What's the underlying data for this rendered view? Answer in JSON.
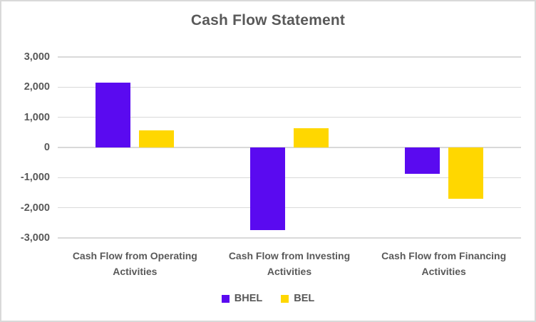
{
  "title": "Cash Flow Statement",
  "colors": {
    "bhel": "#5a0af0",
    "bel": "#ffd700",
    "text": "#595959",
    "gridline": "#d9d9d9",
    "border": "#d9d9d9",
    "background": "#ffffff"
  },
  "chart_data": {
    "type": "bar",
    "title": "Cash Flow Statement",
    "xlabel": "",
    "ylabel": "",
    "grid": true,
    "legend_position": "bottom",
    "ylim": [
      -3000,
      3000
    ],
    "ytick_step": 1000,
    "ytick_labels": [
      "3,000",
      "2,000",
      "1,000",
      "0",
      "-1,000",
      "-2,000",
      "-3,000"
    ],
    "categories": [
      "Cash Flow from Operating Activities",
      "Cash Flow from Investing Activities",
      "Cash Flow from Financing Activities"
    ],
    "series": [
      {
        "name": "BHEL",
        "color": "#5a0af0",
        "values": [
          2160,
          -2750,
          -870
        ]
      },
      {
        "name": "BEL",
        "color": "#ffd700",
        "values": [
          570,
          640,
          -1700
        ]
      }
    ]
  }
}
